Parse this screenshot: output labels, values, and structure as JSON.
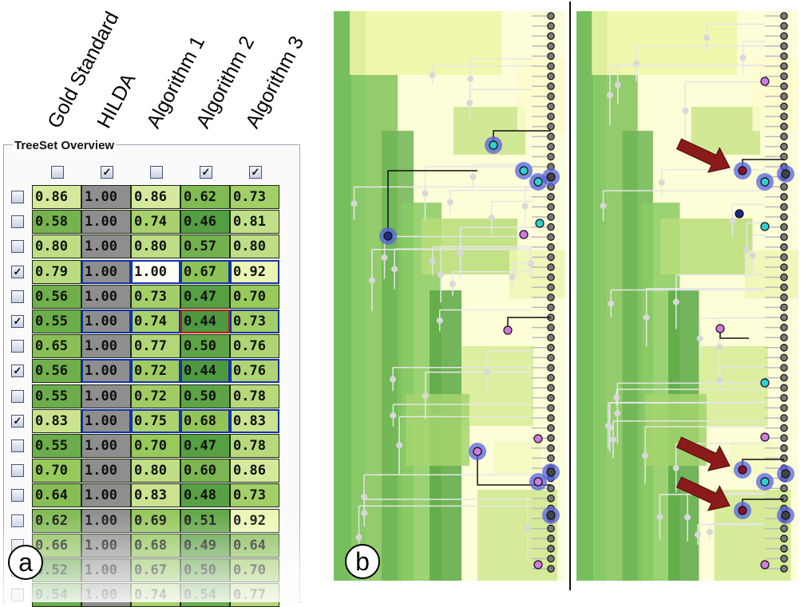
{
  "columns": [
    {
      "label": "Gold Standard",
      "checked": false
    },
    {
      "label": "HILDA",
      "checked": true
    },
    {
      "label": "Algorithm 1",
      "checked": false
    },
    {
      "label": "Algorithm 2",
      "checked": true
    },
    {
      "label": "Algorithm 3",
      "checked": true
    }
  ],
  "panel_title": "TreeSet Overview",
  "badges": {
    "a": "a",
    "b": "b"
  },
  "rows": [
    {
      "checked": false,
      "values": [
        "0.86",
        "1.00",
        "0.86",
        "0.62",
        "0.73"
      ],
      "selected": false,
      "red_col": -1
    },
    {
      "checked": false,
      "values": [
        "0.58",
        "1.00",
        "0.74",
        "0.46",
        "0.81"
      ],
      "selected": false,
      "red_col": -1
    },
    {
      "checked": false,
      "values": [
        "0.80",
        "1.00",
        "0.80",
        "0.57",
        "0.80"
      ],
      "selected": false,
      "red_col": -1
    },
    {
      "checked": true,
      "values": [
        "0.79",
        "1.00",
        "1.00",
        "0.67",
        "0.92"
      ],
      "selected": true,
      "red_col": -1
    },
    {
      "checked": false,
      "values": [
        "0.56",
        "1.00",
        "0.73",
        "0.47",
        "0.70"
      ],
      "selected": false,
      "red_col": -1
    },
    {
      "checked": true,
      "values": [
        "0.55",
        "1.00",
        "0.74",
        "0.44",
        "0.73"
      ],
      "selected": true,
      "red_col": 3
    },
    {
      "checked": false,
      "values": [
        "0.65",
        "1.00",
        "0.77",
        "0.50",
        "0.76"
      ],
      "selected": false,
      "red_col": -1
    },
    {
      "checked": true,
      "values": [
        "0.56",
        "1.00",
        "0.72",
        "0.44",
        "0.76"
      ],
      "selected": true,
      "red_col": -1
    },
    {
      "checked": false,
      "values": [
        "0.55",
        "1.00",
        "0.72",
        "0.50",
        "0.78"
      ],
      "selected": false,
      "red_col": -1
    },
    {
      "checked": true,
      "values": [
        "0.83",
        "1.00",
        "0.75",
        "0.68",
        "0.83"
      ],
      "selected": true,
      "red_col": -1
    },
    {
      "checked": false,
      "values": [
        "0.55",
        "1.00",
        "0.70",
        "0.47",
        "0.78"
      ],
      "selected": false,
      "red_col": -1
    },
    {
      "checked": false,
      "values": [
        "0.70",
        "1.00",
        "0.80",
        "0.60",
        "0.86"
      ],
      "selected": false,
      "red_col": -1
    },
    {
      "checked": false,
      "values": [
        "0.64",
        "1.00",
        "0.83",
        "0.48",
        "0.73"
      ],
      "selected": false,
      "red_col": -1
    },
    {
      "checked": false,
      "values": [
        "0.62",
        "1.00",
        "0.69",
        "0.51",
        "0.92"
      ],
      "selected": false,
      "red_col": -1
    },
    {
      "checked": false,
      "values": [
        "0.66",
        "1.00",
        "0.68",
        "0.49",
        "0.64"
      ],
      "selected": false,
      "red_col": -1
    },
    {
      "checked": false,
      "values": [
        "0.52",
        "1.00",
        "0.67",
        "0.50",
        "0.70"
      ],
      "selected": false,
      "red_col": -1
    },
    {
      "checked": false,
      "values": [
        "0.54",
        "1.00",
        "0.74",
        "0.54",
        "0.77"
      ],
      "selected": false,
      "red_col": -1
    }
  ],
  "colors": {
    "selection_border": "#1432a8",
    "highlight_border": "#c21818",
    "hilda_column": "#8e8e8e",
    "highlight_node": "#5561e0",
    "leaf_node": "#7a7a7a",
    "arrow": "#8b1a1a"
  }
}
